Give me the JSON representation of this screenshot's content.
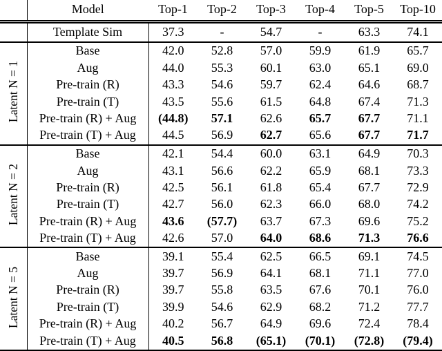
{
  "table": {
    "columns": [
      "Model",
      "Top-1",
      "Top-2",
      "Top-3",
      "Top-4",
      "Top-5",
      "Top-10"
    ],
    "baseline": {
      "model": "Template Sim",
      "cells": [
        {
          "v": "37.3"
        },
        {
          "v": "-"
        },
        {
          "v": "54.7"
        },
        {
          "v": "-"
        },
        {
          "v": "63.3"
        },
        {
          "v": "74.1"
        }
      ]
    },
    "groups": [
      {
        "label": "Latent N = 1",
        "rows": [
          {
            "model": "Base",
            "cells": [
              {
                "v": "42.0"
              },
              {
                "v": "52.8"
              },
              {
                "v": "57.0"
              },
              {
                "v": "59.9"
              },
              {
                "v": "61.9"
              },
              {
                "v": "65.7"
              }
            ]
          },
          {
            "model": "Aug",
            "cells": [
              {
                "v": "44.0"
              },
              {
                "v": "55.3"
              },
              {
                "v": "60.1"
              },
              {
                "v": "63.0"
              },
              {
                "v": "65.1"
              },
              {
                "v": "69.0"
              }
            ]
          },
          {
            "model": "Pre-train (R)",
            "cells": [
              {
                "v": "43.3"
              },
              {
                "v": "54.6"
              },
              {
                "v": "59.7"
              },
              {
                "v": "62.4"
              },
              {
                "v": "64.6"
              },
              {
                "v": "68.7"
              }
            ]
          },
          {
            "model": "Pre-train (T)",
            "cells": [
              {
                "v": "43.5"
              },
              {
                "v": "55.6"
              },
              {
                "v": "61.5"
              },
              {
                "v": "64.8"
              },
              {
                "v": "67.4"
              },
              {
                "v": "71.3"
              }
            ]
          },
          {
            "model": "Pre-train (R) + Aug",
            "cells": [
              {
                "v": "(44.8)",
                "b": true
              },
              {
                "v": "57.1",
                "b": true
              },
              {
                "v": "62.6"
              },
              {
                "v": "65.7",
                "b": true
              },
              {
                "v": "67.7",
                "b": true
              },
              {
                "v": "71.1"
              }
            ]
          },
          {
            "model": "Pre-train (T) + Aug",
            "cells": [
              {
                "v": "44.5"
              },
              {
                "v": "56.9"
              },
              {
                "v": "62.7",
                "b": true
              },
              {
                "v": "65.6"
              },
              {
                "v": "67.7",
                "b": true
              },
              {
                "v": "71.7",
                "b": true
              }
            ]
          }
        ]
      },
      {
        "label": "Latent N = 2",
        "rows": [
          {
            "model": "Base",
            "cells": [
              {
                "v": "42.1"
              },
              {
                "v": "54.4"
              },
              {
                "v": "60.0"
              },
              {
                "v": "63.1"
              },
              {
                "v": "64.9"
              },
              {
                "v": "70.3"
              }
            ]
          },
          {
            "model": "Aug",
            "cells": [
              {
                "v": "43.1"
              },
              {
                "v": "56.6"
              },
              {
                "v": "62.2"
              },
              {
                "v": "65.9"
              },
              {
                "v": "68.1"
              },
              {
                "v": "73.3"
              }
            ]
          },
          {
            "model": "Pre-train (R)",
            "cells": [
              {
                "v": "42.5"
              },
              {
                "v": "56.1"
              },
              {
                "v": "61.8"
              },
              {
                "v": "65.4"
              },
              {
                "v": "67.7"
              },
              {
                "v": "72.9"
              }
            ]
          },
          {
            "model": "Pre-train (T)",
            "cells": [
              {
                "v": "42.7"
              },
              {
                "v": "56.0"
              },
              {
                "v": "62.3"
              },
              {
                "v": "66.0"
              },
              {
                "v": "68.0"
              },
              {
                "v": "74.2"
              }
            ]
          },
          {
            "model": "Pre-train (R) + Aug",
            "cells": [
              {
                "v": "43.6",
                "b": true
              },
              {
                "v": "(57.7)",
                "b": true
              },
              {
                "v": "63.7"
              },
              {
                "v": "67.3"
              },
              {
                "v": "69.6"
              },
              {
                "v": "75.2"
              }
            ]
          },
          {
            "model": "Pre-train (T) + Aug",
            "cells": [
              {
                "v": "42.6"
              },
              {
                "v": "57.0"
              },
              {
                "v": "64.0",
                "b": true
              },
              {
                "v": "68.6",
                "b": true
              },
              {
                "v": "71.3",
                "b": true
              },
              {
                "v": "76.6",
                "b": true
              }
            ]
          }
        ]
      },
      {
        "label": "Latent N = 5",
        "rows": [
          {
            "model": "Base",
            "cells": [
              {
                "v": "39.1"
              },
              {
                "v": "55.4"
              },
              {
                "v": "62.5"
              },
              {
                "v": "66.5"
              },
              {
                "v": "69.1"
              },
              {
                "v": "74.5"
              }
            ]
          },
          {
            "model": "Aug",
            "cells": [
              {
                "v": "39.7"
              },
              {
                "v": "56.9"
              },
              {
                "v": "64.1"
              },
              {
                "v": "68.1"
              },
              {
                "v": "71.1"
              },
              {
                "v": "77.0"
              }
            ]
          },
          {
            "model": "Pre-train (R)",
            "cells": [
              {
                "v": "39.7"
              },
              {
                "v": "55.8"
              },
              {
                "v": "63.5"
              },
              {
                "v": "67.6"
              },
              {
                "v": "70.1"
              },
              {
                "v": "76.0"
              }
            ]
          },
          {
            "model": "Pre-train (T)",
            "cells": [
              {
                "v": "39.9"
              },
              {
                "v": "54.6"
              },
              {
                "v": "62.9"
              },
              {
                "v": "68.2"
              },
              {
                "v": "71.2"
              },
              {
                "v": "77.7"
              }
            ]
          },
          {
            "model": "Pre-train (R) + Aug",
            "cells": [
              {
                "v": "40.2"
              },
              {
                "v": "56.7"
              },
              {
                "v": "64.9"
              },
              {
                "v": "69.6"
              },
              {
                "v": "72.4"
              },
              {
                "v": "78.4"
              }
            ]
          },
          {
            "model": "Pre-train (T) + Aug",
            "cells": [
              {
                "v": "40.5",
                "b": true
              },
              {
                "v": "56.8",
                "b": true
              },
              {
                "v": "(65.1)",
                "b": true
              },
              {
                "v": "(70.1)",
                "b": true
              },
              {
                "v": "(72.8)",
                "b": true
              },
              {
                "v": "(79.4)",
                "b": true
              }
            ]
          }
        ]
      }
    ]
  }
}
